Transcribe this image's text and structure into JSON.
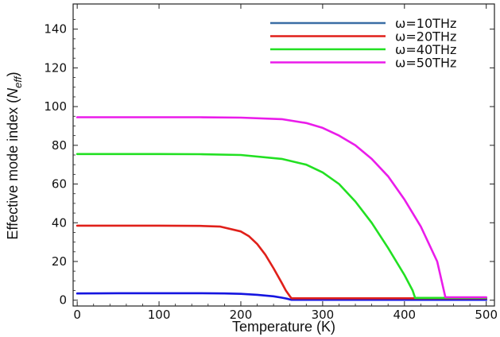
{
  "chart_data": {
    "type": "line",
    "xlabel": "Temperature (K)",
    "ylabel_prefix": "Effective mode index (",
    "ylabel_symbol": "N",
    "ylabel_subscript": "eff",
    "ylabel_suffix": ")",
    "xlim": [
      -5,
      510
    ],
    "ylim": [
      -3,
      153
    ],
    "xticks": [
      0,
      100,
      200,
      300,
      400,
      500
    ],
    "yticks": [
      0,
      20,
      40,
      60,
      80,
      100,
      120,
      140
    ],
    "grid": false,
    "legend_position": "top-right",
    "series": [
      {
        "name": "ω=10THz",
        "legend_color": "#3a6ea5",
        "color": "#1515e0",
        "x": [
          0,
          50,
          100,
          150,
          180,
          200,
          220,
          240,
          250,
          255,
          258,
          260,
          262,
          270,
          300,
          350,
          400,
          450,
          500
        ],
        "y": [
          3.5,
          3.6,
          3.6,
          3.6,
          3.5,
          3.3,
          2.8,
          2.0,
          1.3,
          0.9,
          0.6,
          0.4,
          0.2,
          0.2,
          0.2,
          0.2,
          0.2,
          0.2,
          0.2
        ]
      },
      {
        "name": "ω=20THz",
        "legend_color": "#e0201a",
        "color": "#e0201a",
        "x": [
          0,
          50,
          100,
          150,
          175,
          200,
          210,
          220,
          230,
          240,
          250,
          255,
          260,
          262,
          270,
          300,
          350,
          400,
          450,
          500
        ],
        "y": [
          38.5,
          38.5,
          38.5,
          38.4,
          38.0,
          35.5,
          33.0,
          29.0,
          23.5,
          16.5,
          9.0,
          5.0,
          2.0,
          1.0,
          1.0,
          1.0,
          1.0,
          1.0,
          1.0,
          1.0
        ]
      },
      {
        "name": "ω=40THz",
        "legend_color": "#22e022",
        "color": "#22e022",
        "x": [
          0,
          50,
          100,
          150,
          200,
          250,
          280,
          300,
          320,
          340,
          360,
          380,
          400,
          410,
          413,
          420,
          450,
          500
        ],
        "y": [
          75.5,
          75.5,
          75.5,
          75.4,
          75.0,
          73.0,
          70.0,
          66.0,
          60.0,
          51.0,
          40.0,
          27.0,
          13.0,
          5.0,
          1.2,
          1.2,
          1.2,
          1.2
        ]
      },
      {
        "name": "ω=50THz",
        "legend_color": "#ea1cea",
        "color": "#ea1cea",
        "x": [
          0,
          50,
          100,
          150,
          200,
          250,
          280,
          300,
          320,
          340,
          360,
          380,
          400,
          420,
          440,
          450,
          460,
          500
        ],
        "y": [
          94.5,
          94.5,
          94.5,
          94.5,
          94.3,
          93.5,
          91.5,
          89.0,
          85.0,
          80.0,
          73.0,
          64.0,
          52.0,
          38.0,
          20.0,
          1.5,
          1.5,
          1.5
        ]
      }
    ]
  }
}
